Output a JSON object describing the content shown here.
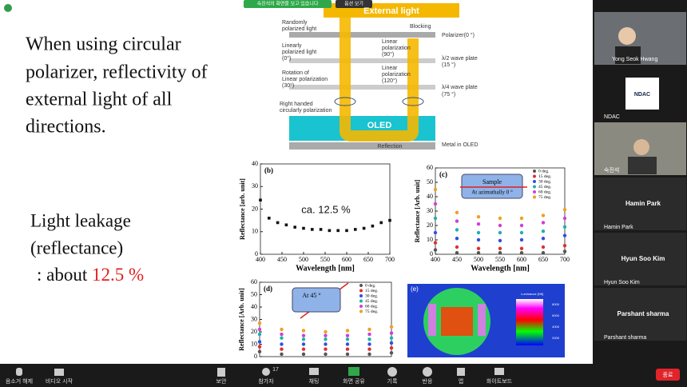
{
  "slide": {
    "text_lines": [
      "When using circular",
      "polarizer, reflectivity of",
      "external light of all",
      "directions."
    ],
    "leak_lines": [
      "Light leakage",
      "(reflectance)"
    ],
    "leak_prefix": ": about",
    "leak_value": "12.5 %"
  },
  "diagram": {
    "viewing_banner": "숙진석의 화면을 보고 있습니다",
    "options": "옵션 보기",
    "external_light": "External light",
    "randomly": [
      "Randomly",
      "polarized light"
    ],
    "blocking": "Blocking",
    "polarizer": "Polarizer(0 °)",
    "linear0": [
      "Linearly",
      "polarized light",
      "(0°)"
    ],
    "linear90": [
      "Linear",
      "polarization",
      "(90°)"
    ],
    "halfwave": [
      "λ/2 wave plate",
      "(15 °)"
    ],
    "rotation": [
      "Rotation of",
      "Linear polarization",
      "(30°)"
    ],
    "linear120": [
      "Linear",
      "polarization",
      "(120°)"
    ],
    "quarterwave": [
      "λ/4 wave plate",
      "(75 °)"
    ],
    "circular": [
      "Right handed",
      "circularly polarization"
    ],
    "oled": "OLED",
    "reflection": "Reflection",
    "metal": "Metal in OLED"
  },
  "chart_data": [
    {
      "type": "scatter",
      "panel": "(b)",
      "annotation": "ca. 12.5 %",
      "x_label": "Wavelength [nm]",
      "y_label": "Reflectance [arb. unit]",
      "color": "#111111",
      "x": [
        400,
        420,
        440,
        460,
        480,
        500,
        520,
        540,
        560,
        580,
        600,
        620,
        640,
        660,
        680,
        700
      ],
      "values": [
        24,
        16,
        14,
        13,
        12,
        11.5,
        11,
        11,
        10.5,
        10.5,
        10.5,
        11,
        11.5,
        12.5,
        14,
        15
      ],
      "xlim": [
        400,
        700
      ],
      "ylim": [
        0,
        40
      ],
      "xticks": [
        400,
        450,
        500,
        550,
        600,
        650,
        700
      ],
      "yticks": [
        0,
        10,
        20,
        30,
        40
      ]
    },
    {
      "type": "scatter",
      "panel": "(c)",
      "x_label": "Wavelength [nm]",
      "y_label": "Reflectance [Arb. unit]",
      "box_lines": [
        "Sample",
        "At azimuthally 0 °"
      ],
      "x": [
        400,
        450,
        500,
        550,
        600,
        650,
        700
      ],
      "xlim": [
        400,
        700
      ],
      "ylim": [
        0,
        60
      ],
      "xticks": [
        400,
        450,
        500,
        550,
        600,
        650,
        700
      ],
      "yticks": [
        0,
        10,
        20,
        30,
        40,
        50,
        60
      ],
      "series": [
        {
          "name": "0 deg.",
          "color": "#555555",
          "values": [
            3,
            1,
            1,
            1,
            1,
            1,
            2
          ]
        },
        {
          "name": "15 deg.",
          "color": "#e03030",
          "values": [
            8,
            5,
            4,
            4,
            4,
            5,
            6
          ]
        },
        {
          "name": "30 deg.",
          "color": "#3050e0",
          "values": [
            15,
            11,
            10,
            9.5,
            10,
            11,
            13
          ]
        },
        {
          "name": "45 deg.",
          "color": "#20b0b0",
          "values": [
            25,
            17,
            15,
            15,
            15,
            16,
            19
          ]
        },
        {
          "name": "60 deg.",
          "color": "#d040d0",
          "values": [
            35,
            23,
            21,
            20,
            20,
            22,
            25
          ]
        },
        {
          "name": "75 deg.",
          "color": "#f0a020",
          "values": [
            45,
            29,
            26,
            25,
            25,
            27,
            31
          ]
        }
      ]
    },
    {
      "type": "scatter",
      "panel": "(d)",
      "y_label": "Reflectance [Arb. unit]",
      "box_lines": [
        "At 45 °"
      ],
      "x": [
        400,
        450,
        500,
        550,
        600,
        650,
        700
      ],
      "xlim": [
        400,
        700
      ],
      "ylim": [
        0,
        60
      ],
      "yticks": [
        0,
        10,
        20,
        30,
        40,
        50,
        60
      ],
      "series": [
        {
          "name": "0 deg.",
          "color": "#555555",
          "values": [
            4,
            2,
            2,
            2,
            2,
            2,
            3
          ]
        },
        {
          "name": "15 deg.",
          "color": "#e03030",
          "values": [
            8,
            6,
            6,
            6,
            6,
            6,
            7
          ]
        },
        {
          "name": "30 deg.",
          "color": "#3050e0",
          "values": [
            12,
            10,
            10,
            10,
            10,
            10,
            11
          ]
        },
        {
          "name": "45 deg.",
          "color": "#20b0b0",
          "values": [
            18,
            15,
            14,
            14,
            14,
            14,
            15
          ]
        },
        {
          "name": "60 deg.",
          "color": "#d040d0",
          "values": [
            22,
            18,
            17,
            17,
            17,
            18,
            19
          ]
        },
        {
          "name": "75 deg.",
          "color": "#f0a020",
          "values": [
            27,
            22,
            21,
            20,
            21,
            22,
            24
          ]
        }
      ]
    }
  ],
  "heatmap": {
    "panel": "(e)",
    "colorbar_title": "Luminance [Nit]",
    "colorbar_ticks": [
      "8000",
      "6000",
      "4000",
      "2000"
    ]
  },
  "participants": [
    "Yong Seok Hwang",
    "NDAC",
    "숙진석",
    "Hamin Park",
    "Hamin Park",
    "Hyun Soo Kim",
    "Hyun Soo Kim",
    "Parshant sharma",
    "Parshant sharma"
  ],
  "toolbar": {
    "mute": "음소거 해제",
    "video": "비디오 시작",
    "security": "보안",
    "participants": "참가자",
    "count": "17",
    "chat": "채팅",
    "share": "화면 공유",
    "record": "기록",
    "reactions": "반응",
    "apps": "앱",
    "whiteboard": "화이트보드",
    "end": "종료"
  }
}
